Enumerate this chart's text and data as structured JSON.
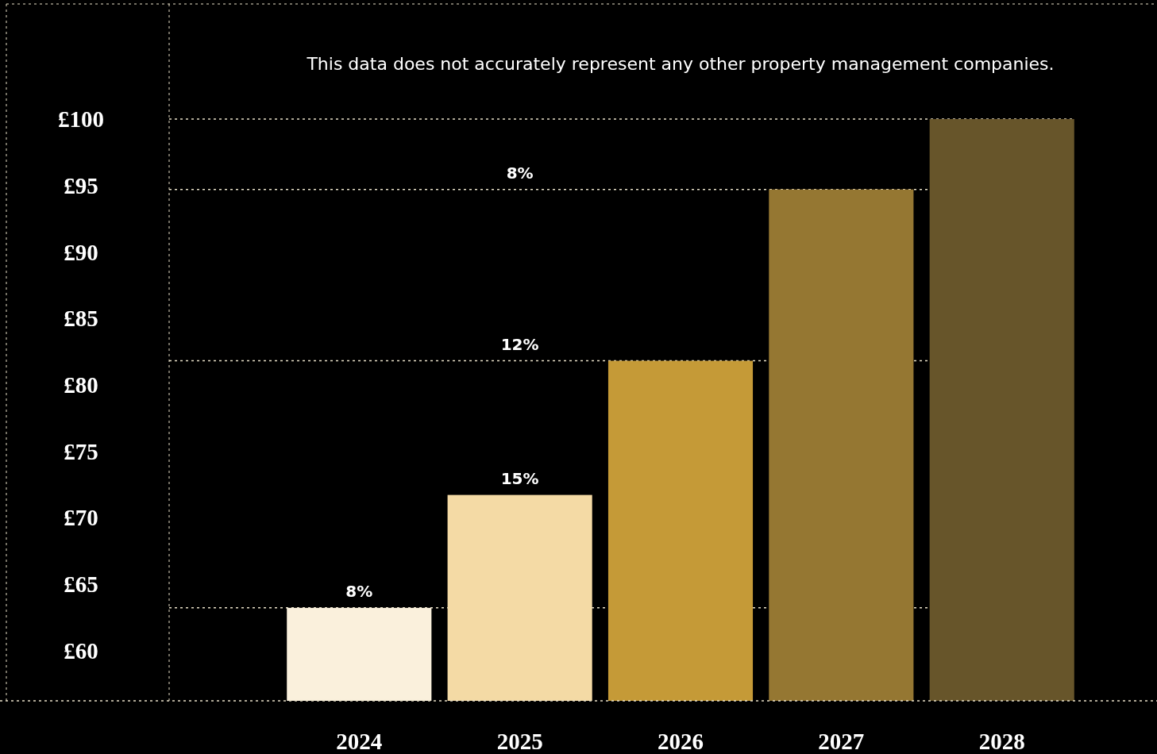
{
  "chart_data": {
    "type": "bar",
    "categories": [
      "2024",
      "2025",
      "2026",
      "2027",
      "2028"
    ],
    "values": [
      63.2,
      71.7,
      81.8,
      94.7,
      100
    ],
    "colors": [
      "#faf0dc",
      "#f4daa5",
      "#c59a37",
      "#957732",
      "#67552a"
    ],
    "ylim": [
      56.2,
      100
    ],
    "yticks": [
      {
        "value": 60,
        "label": "£60"
      },
      {
        "value": 65,
        "label": "£65"
      },
      {
        "value": 70,
        "label": "£70"
      },
      {
        "value": 75,
        "label": "£75"
      },
      {
        "value": 80,
        "label": "£80"
      },
      {
        "value": 85,
        "label": "£85"
      },
      {
        "value": 90,
        "label": "£90"
      },
      {
        "value": 95,
        "label": "£95"
      },
      {
        "value": 100,
        "label": "£100"
      }
    ],
    "ref_lines": [
      {
        "axis": "y",
        "value": 63.2,
        "color": "#e8e0c8",
        "line_style": "dotted"
      },
      {
        "axis": "y",
        "value": 81.8,
        "color": "#e8e0c8",
        "line_style": "dotted"
      },
      {
        "axis": "y",
        "value": 94.7,
        "color": "#e8e0c8",
        "line_style": "dotted"
      },
      {
        "axis": "y",
        "value": 100,
        "color": "#e8e0c8",
        "line_style": "dotted"
      }
    ],
    "annotations": [
      "This data does not accurately represent any other property management companies.",
      "8%",
      "15%",
      "12%",
      "8%"
    ]
  }
}
